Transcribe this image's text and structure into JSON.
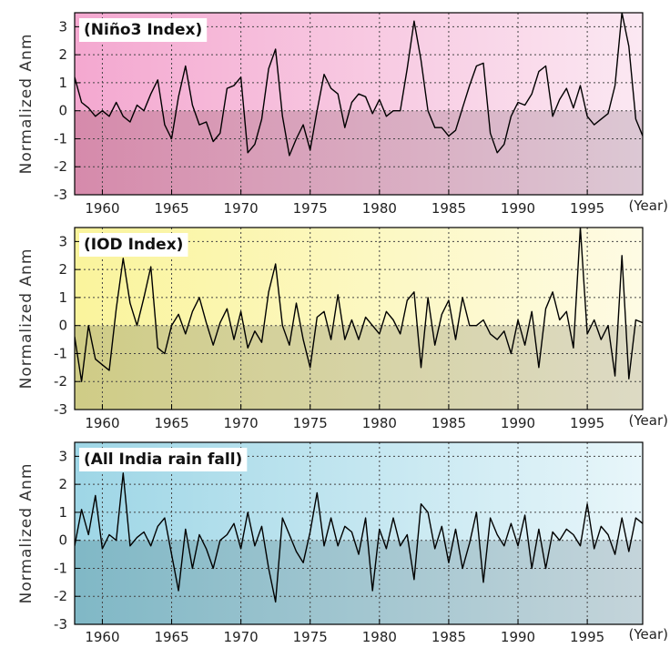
{
  "chart_data": [
    {
      "type": "line",
      "title": "(Niño3 Index)",
      "ylabel": "Normalized Anm",
      "xlabel": "(Year)",
      "xlim": [
        1958,
        1999
      ],
      "ylim": [
        -3,
        3.5
      ],
      "yticks": [
        3,
        2,
        1,
        0,
        -1,
        -2,
        -3
      ],
      "xticks": [
        1960,
        1965,
        1970,
        1975,
        1980,
        1985,
        1990,
        1995
      ],
      "grid": true,
      "colors": {
        "top_left": "#f4a8d0",
        "top_right": "#fbe8f2",
        "bottom_left": "#d68aab",
        "bottom_right": "#dcc8d4",
        "line": "#000000"
      },
      "x": [
        1958.0,
        1958.5,
        1959.0,
        1959.5,
        1960.0,
        1960.5,
        1961.0,
        1961.5,
        1962.0,
        1962.5,
        1963.0,
        1963.5,
        1964.0,
        1964.5,
        1965.0,
        1965.5,
        1966.0,
        1966.5,
        1967.0,
        1967.5,
        1968.0,
        1968.5,
        1969.0,
        1969.5,
        1970.0,
        1970.5,
        1971.0,
        1971.5,
        1972.0,
        1972.5,
        1973.0,
        1973.5,
        1974.0,
        1974.5,
        1975.0,
        1975.5,
        1976.0,
        1976.5,
        1977.0,
        1977.5,
        1978.0,
        1978.5,
        1979.0,
        1979.5,
        1980.0,
        1980.5,
        1981.0,
        1981.5,
        1982.0,
        1982.5,
        1983.0,
        1983.5,
        1984.0,
        1984.5,
        1985.0,
        1985.5,
        1986.0,
        1986.5,
        1987.0,
        1987.5,
        1988.0,
        1988.5,
        1989.0,
        1989.5,
        1990.0,
        1990.5,
        1991.0,
        1991.5,
        1992.0,
        1992.5,
        1993.0,
        1993.5,
        1994.0,
        1994.5,
        1995.0,
        1995.5,
        1996.0,
        1996.5,
        1997.0,
        1997.5,
        1998.0,
        1998.5,
        1999.0
      ],
      "values": [
        1.2,
        0.3,
        0.1,
        -0.2,
        0.0,
        -0.2,
        0.3,
        -0.2,
        -0.4,
        0.2,
        0.0,
        0.6,
        1.1,
        -0.5,
        -1.0,
        0.5,
        1.6,
        0.2,
        -0.5,
        -0.4,
        -1.1,
        -0.8,
        0.8,
        0.9,
        1.2,
        -1.5,
        -1.2,
        -0.3,
        1.5,
        2.2,
        -0.2,
        -1.6,
        -1.0,
        -0.5,
        -1.4,
        0.0,
        1.3,
        0.8,
        0.6,
        -0.6,
        0.3,
        0.6,
        0.5,
        -0.1,
        0.4,
        -0.2,
        0.0,
        0.0,
        1.5,
        3.2,
        1.8,
        0.0,
        -0.6,
        -0.6,
        -0.9,
        -0.7,
        0.1,
        0.9,
        1.6,
        1.7,
        -0.8,
        -1.5,
        -1.2,
        -0.2,
        0.3,
        0.2,
        0.6,
        1.4,
        1.6,
        -0.2,
        0.4,
        0.8,
        0.1,
        0.9,
        -0.2,
        -0.5,
        -0.3,
        -0.1,
        0.9,
        3.5,
        2.3,
        -0.3,
        -0.9
      ]
    },
    {
      "type": "line",
      "title": "(IOD Index)",
      "ylabel": "Normalized Anm",
      "xlabel": "(Year)",
      "xlim": [
        1958,
        1999
      ],
      "ylim": [
        -3,
        3.5
      ],
      "yticks": [
        3,
        2,
        1,
        0,
        -1,
        -2,
        -3
      ],
      "xticks": [
        1960,
        1965,
        1970,
        1975,
        1980,
        1985,
        1990,
        1995
      ],
      "grid": true,
      "colors": {
        "top_left": "#faf49c",
        "top_right": "#fefbe4",
        "bottom_left": "#cfcc86",
        "bottom_right": "#dddac4",
        "line": "#000000"
      },
      "x": [
        1958.0,
        1958.5,
        1959.0,
        1959.5,
        1960.0,
        1960.5,
        1961.0,
        1961.5,
        1962.0,
        1962.5,
        1963.0,
        1963.5,
        1964.0,
        1964.5,
        1965.0,
        1965.5,
        1966.0,
        1966.5,
        1967.0,
        1967.5,
        1968.0,
        1968.5,
        1969.0,
        1969.5,
        1970.0,
        1970.5,
        1971.0,
        1971.5,
        1972.0,
        1972.5,
        1973.0,
        1973.5,
        1974.0,
        1974.5,
        1975.0,
        1975.5,
        1976.0,
        1976.5,
        1977.0,
        1977.5,
        1978.0,
        1978.5,
        1979.0,
        1979.5,
        1980.0,
        1980.5,
        1981.0,
        1981.5,
        1982.0,
        1982.5,
        1983.0,
        1983.5,
        1984.0,
        1984.5,
        1985.0,
        1985.5,
        1986.0,
        1986.5,
        1987.0,
        1987.5,
        1988.0,
        1988.5,
        1989.0,
        1989.5,
        1990.0,
        1990.5,
        1991.0,
        1991.5,
        1992.0,
        1992.5,
        1993.0,
        1993.5,
        1994.0,
        1994.5,
        1995.0,
        1995.5,
        1996.0,
        1996.5,
        1997.0,
        1997.5,
        1998.0,
        1998.5,
        1999.0
      ],
      "values": [
        -0.4,
        -2.0,
        0.0,
        -1.2,
        -1.4,
        -1.6,
        0.6,
        2.4,
        0.8,
        0.0,
        1.0,
        2.1,
        -0.8,
        -1.0,
        0.0,
        0.4,
        -0.3,
        0.5,
        1.0,
        0.1,
        -0.7,
        0.1,
        0.6,
        -0.5,
        0.5,
        -0.8,
        -0.2,
        -0.6,
        1.2,
        2.2,
        0.0,
        -0.7,
        0.8,
        -0.5,
        -1.5,
        0.3,
        0.5,
        -0.5,
        1.1,
        -0.5,
        0.2,
        -0.5,
        0.3,
        0.0,
        -0.3,
        0.5,
        0.2,
        -0.3,
        0.9,
        1.2,
        -1.5,
        1.0,
        -0.7,
        0.4,
        0.9,
        -0.5,
        1.0,
        0.0,
        0.0,
        0.2,
        -0.3,
        -0.5,
        -0.2,
        -1.0,
        0.2,
        -0.7,
        0.5,
        -1.5,
        0.6,
        1.2,
        0.2,
        0.5,
        -0.8,
        3.5,
        -0.3,
        0.2,
        -0.5,
        0.0,
        -1.8,
        2.5,
        -1.9,
        0.2,
        0.1
      ]
    },
    {
      "type": "line",
      "title": "(All India rain fall)",
      "ylabel": "Normalized Anm",
      "xlabel": "(Year)",
      "xlim": [
        1958,
        1999
      ],
      "ylim": [
        -3,
        3.5
      ],
      "yticks": [
        3,
        2,
        1,
        0,
        -1,
        -2,
        -3
      ],
      "xticks": [
        1960,
        1965,
        1970,
        1975,
        1980,
        1985,
        1990,
        1995
      ],
      "grid": true,
      "colors": {
        "top_left": "#9ed6e6",
        "top_right": "#e8f6fa",
        "bottom_left": "#80b8c6",
        "bottom_right": "#c4d4da",
        "line": "#000000"
      },
      "x": [
        1958.0,
        1958.5,
        1959.0,
        1959.5,
        1960.0,
        1960.5,
        1961.0,
        1961.5,
        1962.0,
        1962.5,
        1963.0,
        1963.5,
        1964.0,
        1964.5,
        1965.0,
        1965.5,
        1966.0,
        1966.5,
        1967.0,
        1967.5,
        1968.0,
        1968.5,
        1969.0,
        1969.5,
        1970.0,
        1970.5,
        1971.0,
        1971.5,
        1972.0,
        1972.5,
        1973.0,
        1973.5,
        1974.0,
        1974.5,
        1975.0,
        1975.5,
        1976.0,
        1976.5,
        1977.0,
        1977.5,
        1978.0,
        1978.5,
        1979.0,
        1979.5,
        1980.0,
        1980.5,
        1981.0,
        1981.5,
        1982.0,
        1982.5,
        1983.0,
        1983.5,
        1984.0,
        1984.5,
        1985.0,
        1985.5,
        1986.0,
        1986.5,
        1987.0,
        1987.5,
        1988.0,
        1988.5,
        1989.0,
        1989.5,
        1990.0,
        1990.5,
        1991.0,
        1991.5,
        1992.0,
        1992.5,
        1993.0,
        1993.5,
        1994.0,
        1994.5,
        1995.0,
        1995.5,
        1996.0,
        1996.5,
        1997.0,
        1997.5,
        1998.0,
        1998.5,
        1999.0
      ],
      "values": [
        -0.2,
        1.1,
        0.2,
        1.6,
        -0.3,
        0.2,
        0.0,
        2.4,
        -0.2,
        0.1,
        0.3,
        -0.2,
        0.5,
        0.8,
        -0.5,
        -1.8,
        0.4,
        -1.0,
        0.2,
        -0.3,
        -1.0,
        0.0,
        0.2,
        0.6,
        -0.3,
        1.0,
        -0.2,
        0.5,
        -1.0,
        -2.2,
        0.8,
        0.2,
        -0.4,
        -0.8,
        0.3,
        1.7,
        -0.2,
        0.8,
        -0.2,
        0.5,
        0.3,
        -0.5,
        0.8,
        -1.8,
        0.4,
        -0.3,
        0.8,
        -0.2,
        0.2,
        -1.4,
        1.3,
        1.0,
        -0.3,
        0.5,
        -0.8,
        0.4,
        -1.0,
        -0.1,
        1.0,
        -1.5,
        0.8,
        0.2,
        -0.2,
        0.6,
        -0.2,
        0.9,
        -1.0,
        0.4,
        -1.0,
        0.3,
        0.0,
        0.4,
        0.2,
        -0.2,
        1.3,
        -0.3,
        0.5,
        0.2,
        -0.5,
        0.8,
        -0.4,
        0.8,
        0.6
      ]
    }
  ]
}
